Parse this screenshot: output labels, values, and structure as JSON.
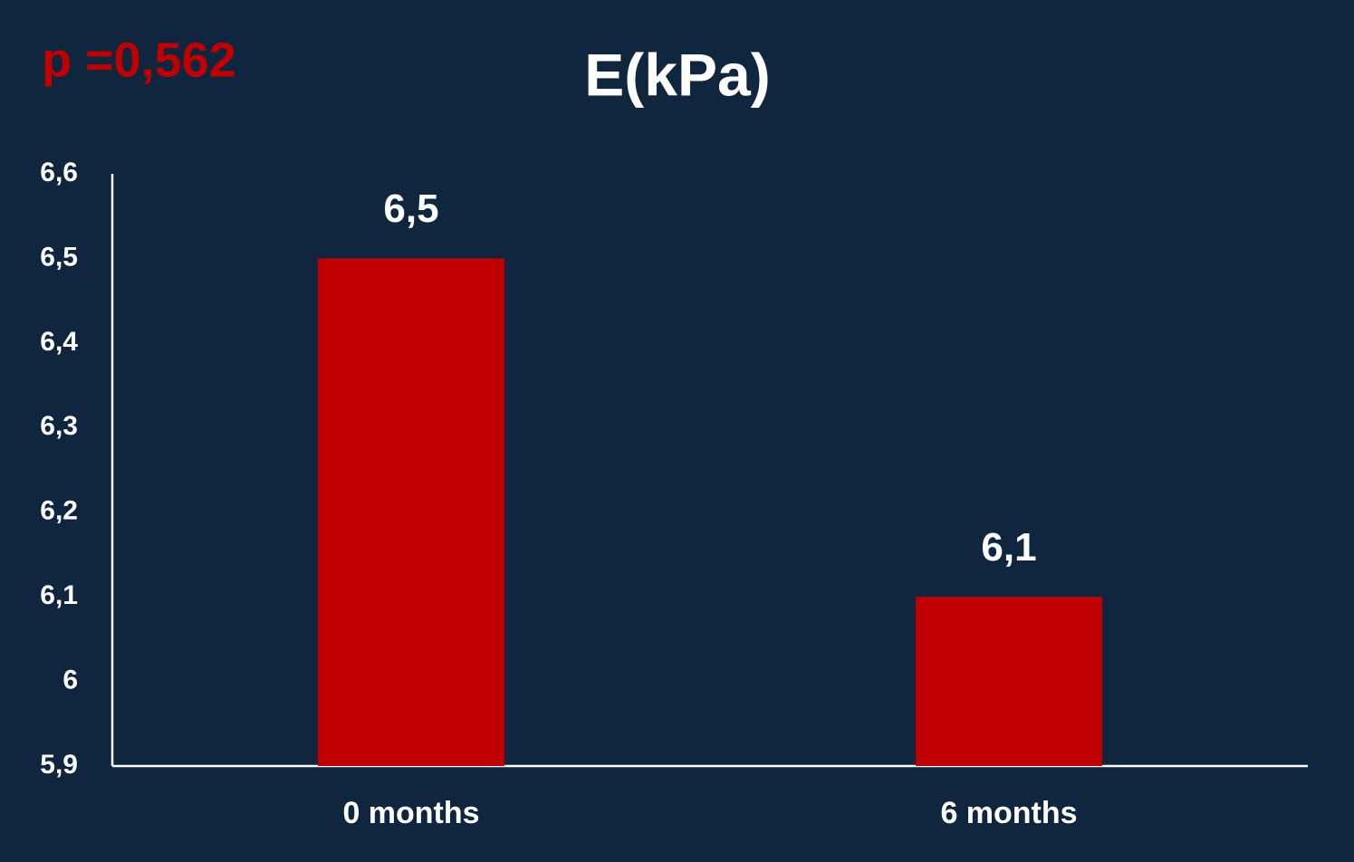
{
  "chart_data": {
    "type": "bar",
    "title": "E(kPa)",
    "annotation": "p =0,562",
    "categories": [
      "0 months",
      "6 months"
    ],
    "values": [
      6.5,
      6.1
    ],
    "value_labels": [
      "6,5",
      "6,1"
    ],
    "color": "#c00000",
    "ylim": [
      5.9,
      6.6
    ],
    "yticks": [
      {
        "value": 5.9,
        "label": "5,9"
      },
      6,
      {
        "value": 6.1,
        "label": "6,1"
      },
      {
        "value": 6.2,
        "label": "6,2"
      },
      {
        "value": 6.3,
        "label": "6,3"
      },
      {
        "value": 6.4,
        "label": "6,4"
      },
      {
        "value": 6.5,
        "label": "6,5"
      },
      {
        "value": 6.6,
        "label": "6,6"
      }
    ],
    "grid": false
  }
}
